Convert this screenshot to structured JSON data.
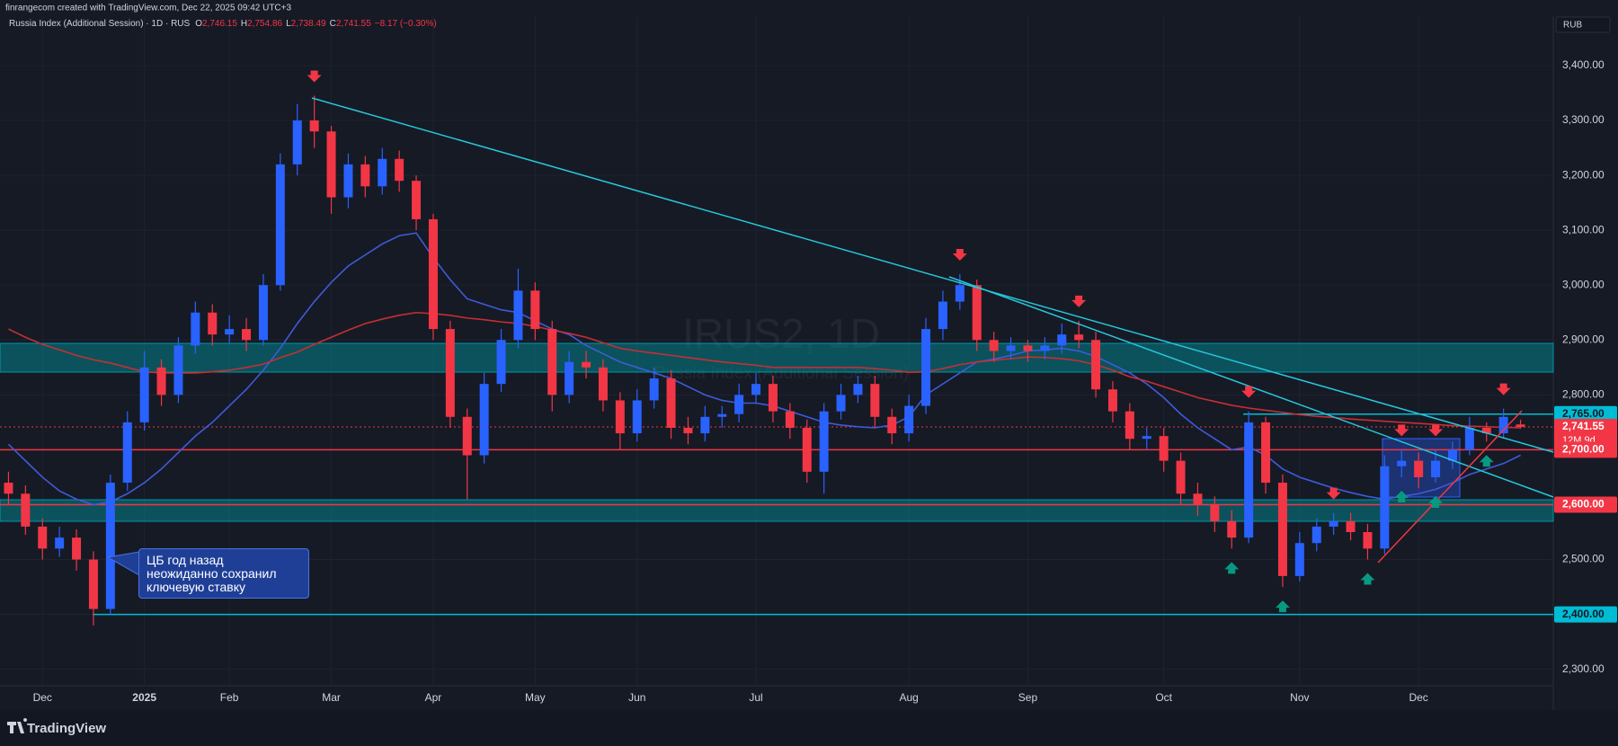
{
  "chart_data": {
    "type": "candlestick",
    "credit": "finrangecom created with TradingView.com, Dec 22, 2025 09:42 UTC+3",
    "title": "Russia Index (Additional Session) · 1D · RUS",
    "ohlc_legend": {
      "labels": [
        "O",
        "H",
        "L",
        "C"
      ],
      "values": [
        "2,746.15",
        "2,754.86",
        "2,738.49",
        "2,741.55"
      ],
      "change": "−8.17 (−0.30%)"
    },
    "currency": "RUB",
    "watermark": "IRUS2, 1D",
    "watermark_subtitle": "Russia Index (Additional Session)",
    "annotation": [
      "ЦБ год назад",
      "неожиданно сохранил",
      "ключевую ставку"
    ],
    "countdown": "12M 9d",
    "brand": "TradingView",
    "up_color": "#2962ff",
    "down_color": "#f23645",
    "categories": [
      null,
      null,
      "Dec",
      null,
      null,
      null,
      null,
      null,
      "2025",
      null,
      null,
      null,
      null,
      "Feb",
      null,
      null,
      null,
      null,
      null,
      "Mar",
      null,
      null,
      null,
      null,
      null,
      "Apr",
      null,
      null,
      null,
      null,
      null,
      "May",
      null,
      null,
      null,
      null,
      null,
      "Jun",
      null,
      null,
      null,
      null,
      null,
      null,
      "Jul",
      null,
      null,
      null,
      null,
      null,
      null,
      null,
      null,
      "Aug",
      null,
      null,
      null,
      null,
      null,
      null,
      "Sep",
      null,
      null,
      null,
      null,
      null,
      null,
      null,
      "Oct",
      null,
      null,
      null,
      null,
      null,
      null,
      null,
      "Nov",
      null,
      null,
      null,
      null,
      null,
      null,
      "Dec",
      null,
      null,
      null,
      null,
      null,
      null
    ],
    "candles": {
      "open": [
        2640,
        2620,
        2560,
        2520,
        2540,
        2500,
        2410,
        2640,
        2750,
        2850,
        2800,
        2890,
        2950,
        2910,
        2920,
        2900,
        3000,
        3220,
        3300,
        3280,
        3160,
        3220,
        3180,
        3230,
        3190,
        3120,
        2920,
        2760,
        2690,
        2820,
        2900,
        2990,
        2920,
        2800,
        2860,
        2850,
        2790,
        2730,
        2790,
        2830,
        2740,
        2730,
        2760,
        2765,
        2800,
        2820,
        2770,
        2740,
        2660,
        2770,
        2800,
        2820,
        2760,
        2730,
        2780,
        2920,
        2970,
        3000,
        2900,
        2880,
        2890,
        2880,
        2890,
        2910,
        2900,
        2810,
        2770,
        2720,
        2725,
        2680,
        2620,
        2600,
        2570,
        2540,
        2750,
        2640,
        2470,
        2530,
        2560,
        2570,
        2550,
        2520,
        2670,
        2680,
        2650,
        2680,
        2700,
        2740,
        2730,
        2746.15
      ],
      "high": [
        2660,
        2635,
        2575,
        2560,
        2555,
        2515,
        2655,
        2770,
        2880,
        2865,
        2905,
        2970,
        2965,
        2945,
        2940,
        3020,
        3240,
        3330,
        3345,
        3290,
        3240,
        3235,
        3250,
        3245,
        3200,
        3130,
        2935,
        2775,
        2840,
        2920,
        3030,
        3005,
        2935,
        2880,
        2880,
        2865,
        2805,
        2810,
        2850,
        2845,
        2760,
        2780,
        2780,
        2820,
        2840,
        2835,
        2785,
        2755,
        2785,
        2820,
        2835,
        2835,
        2775,
        2800,
        2940,
        2990,
        3020,
        3010,
        2915,
        2905,
        2900,
        2905,
        2930,
        2935,
        2915,
        2825,
        2785,
        2740,
        2740,
        2695,
        2640,
        2615,
        2590,
        2770,
        2760,
        2655,
        2550,
        2575,
        2585,
        2585,
        2565,
        2690,
        2700,
        2695,
        2700,
        2715,
        2760,
        2750,
        2775,
        2754.86
      ],
      "low": [
        2600,
        2545,
        2500,
        2505,
        2480,
        2380,
        2400,
        2625,
        2735,
        2780,
        2785,
        2875,
        2890,
        2895,
        2880,
        2890,
        2990,
        3200,
        3250,
        3130,
        3140,
        3160,
        3165,
        3170,
        3100,
        2900,
        2740,
        2610,
        2675,
        2805,
        2885,
        2900,
        2770,
        2785,
        2830,
        2770,
        2700,
        2715,
        2775,
        2720,
        2710,
        2715,
        2740,
        2750,
        2785,
        2750,
        2720,
        2640,
        2620,
        2755,
        2785,
        2740,
        2710,
        2715,
        2765,
        2900,
        2955,
        2880,
        2860,
        2865,
        2860,
        2865,
        2875,
        2885,
        2795,
        2750,
        2700,
        2700,
        2660,
        2600,
        2580,
        2550,
        2520,
        2530,
        2620,
        2450,
        2460,
        2515,
        2545,
        2535,
        2500,
        2510,
        2650,
        2630,
        2640,
        2665,
        2690,
        2715,
        2720,
        2738.49
      ],
      "close": [
        2620,
        2560,
        2520,
        2540,
        2500,
        2410,
        2640,
        2750,
        2850,
        2800,
        2890,
        2950,
        2910,
        2920,
        2900,
        3000,
        3220,
        3300,
        3280,
        3160,
        3220,
        3180,
        3230,
        3190,
        3120,
        2920,
        2760,
        2690,
        2820,
        2900,
        2990,
        2920,
        2800,
        2860,
        2850,
        2790,
        2730,
        2790,
        2830,
        2740,
        2730,
        2760,
        2765,
        2800,
        2820,
        2770,
        2740,
        2660,
        2770,
        2800,
        2820,
        2760,
        2730,
        2780,
        2920,
        2970,
        3000,
        2900,
        2880,
        2890,
        2880,
        2890,
        2910,
        2900,
        2810,
        2770,
        2720,
        2725,
        2680,
        2620,
        2600,
        2570,
        2540,
        2750,
        2640,
        2470,
        2530,
        2560,
        2570,
        2550,
        2520,
        2670,
        2680,
        2650,
        2680,
        2700,
        2740,
        2730,
        2760,
        2741.55
      ]
    },
    "series": [
      {
        "color": "#3f5bd9",
        "values": [
          2710,
          2680,
          2650,
          2625,
          2610,
          2600,
          2605,
          2620,
          2640,
          2665,
          2695,
          2725,
          2750,
          2780,
          2810,
          2845,
          2885,
          2930,
          2970,
          3005,
          3035,
          3055,
          3075,
          3090,
          3095,
          3050,
          3010,
          2975,
          2965,
          2955,
          2950,
          2935,
          2920,
          2910,
          2890,
          2875,
          2860,
          2850,
          2840,
          2830,
          2815,
          2800,
          2790,
          2785,
          2785,
          2780,
          2770,
          2760,
          2750,
          2745,
          2742,
          2740,
          2745,
          2760,
          2800,
          2820,
          2840,
          2860,
          2865,
          2872,
          2880,
          2882,
          2885,
          2880,
          2870,
          2855,
          2840,
          2820,
          2795,
          2765,
          2740,
          2720,
          2700,
          2705,
          2690,
          2665,
          2650,
          2640,
          2630,
          2622,
          2615,
          2610,
          2615,
          2620,
          2628,
          2640,
          2655,
          2665,
          2675,
          2690
        ]
      },
      {
        "color": "#c62f33",
        "values": [
          2920,
          2905,
          2892,
          2882,
          2872,
          2864,
          2858,
          2850,
          2842,
          2840,
          2840,
          2840,
          2842,
          2845,
          2850,
          2856,
          2868,
          2878,
          2892,
          2905,
          2918,
          2930,
          2938,
          2945,
          2950,
          2948,
          2945,
          2940,
          2937,
          2933,
          2930,
          2925,
          2918,
          2912,
          2905,
          2895,
          2885,
          2880,
          2876,
          2872,
          2868,
          2864,
          2860,
          2857,
          2854,
          2850,
          2850,
          2850,
          2850,
          2850,
          2850,
          2848,
          2845,
          2841,
          2842,
          2848,
          2855,
          2860,
          2863,
          2866,
          2869,
          2868,
          2866,
          2862,
          2855,
          2845,
          2833,
          2825,
          2815,
          2805,
          2795,
          2788,
          2781,
          2776,
          2772,
          2768,
          2764,
          2761,
          2759,
          2756,
          2754,
          2752,
          2750,
          2748,
          2746,
          2744,
          2743,
          2742,
          2741,
          2740
        ]
      }
    ],
    "price_labels": [
      {
        "value": 2765,
        "label": "2,765.00",
        "color": "#00bcd4"
      },
      {
        "value": 2741.55,
        "label": "2,741.55",
        "color": "#f23645"
      },
      {
        "value": 2700,
        "label": "2,700.00",
        "color": "#f23645"
      },
      {
        "value": 2600,
        "label": "2,600.00",
        "color": "#f23645"
      },
      {
        "value": 2400,
        "label": "2,400.00",
        "color": "#00bcd4"
      }
    ],
    "ylim": [
      2270,
      3490
    ],
    "yticks": [
      {
        "value": 2300,
        "label": "2,300.00"
      },
      {
        "value": 2400,
        "label": "2,400.00"
      },
      {
        "value": 2500,
        "label": "2,500.00"
      },
      {
        "value": 2600,
        "label": "2,600.00"
      },
      {
        "value": 2700,
        "label": "2,700.00"
      },
      {
        "value": 2800,
        "label": "2,800.00"
      },
      {
        "value": 2900,
        "label": "2,900.00"
      },
      {
        "value": 3000,
        "label": "3,000.00"
      },
      {
        "value": 3100,
        "label": "3,100.00"
      },
      {
        "value": 3200,
        "label": "3,200.00"
      },
      {
        "value": 3300,
        "label": "3,300.00"
      },
      {
        "value": 3400,
        "label": "3,400.00"
      }
    ],
    "grid": true
  }
}
